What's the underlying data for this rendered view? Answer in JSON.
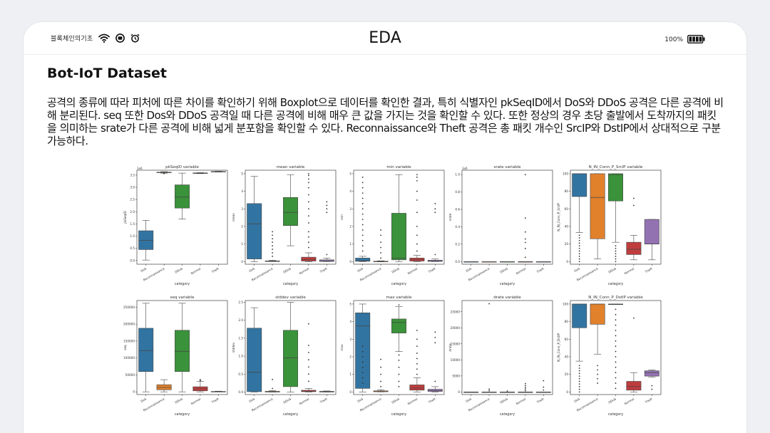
{
  "status_bar": {
    "brand": "블록체인의기초",
    "icons": [
      "wifi-icon",
      "record-icon",
      "alarm-icon"
    ],
    "title": "EDA",
    "battery_percent": "100%",
    "battery_level": 1.0
  },
  "heading": "Bot-IoT Dataset",
  "paragraph": "공격의 종류에 따라 피처에 따른 차이를 확인하기 위해 Boxplot으로 데이터를 확인한 결과, 특히 식별자인 pkSeqID에서 DoS와 DDoS 공격은 다른 공격에 비해 분리된다. seq 또한 Dos와 DDoS 공격일 때 다른 공격에 비해 매우 큰 값을 가지는 것을 확인할 수 있다. 또한 정상의 경우 초당 출발에서 도착까지의 패킷을 의미하는 srate가 다른 공격에 비해 넓게 분포함을 확인할 수 있다. Reconnaissance와 Theft 공격은 총 패킷 개수인 SrcIP와 DstIP에서 상대적으로 구분 가능하다.",
  "chart_data": {
    "type": "box",
    "categories": [
      "DoS",
      "Reconnaissance",
      "DDoS",
      "Normal",
      "Theft"
    ],
    "category_colors": [
      "#3274a1",
      "#e1812c",
      "#3a923a",
      "#c03d3e",
      "#9372b2"
    ],
    "xlabel": "category",
    "panels": [
      {
        "title": "pkSeqID variable",
        "ylabel": "pkSeqID",
        "offset_label": "1e6",
        "ylim": [
          -0.15,
          3.7
        ],
        "ticks": [
          0,
          0.5,
          1,
          1.5,
          2,
          2.5,
          3,
          3.5
        ],
        "tick_labels": [
          "0.0",
          "0.5",
          "1.0",
          "1.5",
          "2.0",
          "2.5",
          "3.0",
          "3.5"
        ],
        "boxes": [
          [
            0.02,
            0.45,
            0.83,
            1.22,
            1.65
          ],
          [
            3.58,
            3.6,
            3.61,
            3.62,
            3.64
          ],
          [
            1.7,
            2.15,
            2.6,
            3.1,
            3.58
          ],
          [
            3.56,
            3.57,
            3.58,
            3.59,
            3.6
          ],
          [
            3.63,
            3.64,
            3.64,
            3.65,
            3.66
          ]
        ],
        "outliers": [
          [],
          [
            3.56,
            3.57
          ],
          [],
          [],
          []
        ]
      },
      {
        "title": "mean variable",
        "ylabel": "mean",
        "ylim": [
          -0.15,
          5.2
        ],
        "ticks": [
          0,
          1,
          2,
          3,
          4,
          5
        ],
        "tick_labels": [
          "0",
          "1",
          "2",
          "3",
          "4",
          "5"
        ],
        "boxes": [
          [
            0,
            0.15,
            2.15,
            3.3,
            4.85
          ],
          [
            0,
            0.01,
            0.02,
            0.04,
            0.08
          ],
          [
            0.9,
            2.05,
            2.8,
            3.65,
            4.95
          ],
          [
            0,
            0.03,
            0.12,
            0.25,
            0.5
          ],
          [
            0,
            0.01,
            0.04,
            0.1,
            0.2
          ]
        ],
        "outliers": [
          [],
          [
            0.3,
            0.5,
            0.7,
            0.9,
            1.1,
            1.3,
            1.5,
            1.7
          ],
          [],
          [
            0.8,
            1.1,
            1.4,
            1.7,
            2.2,
            2.6,
            3.0,
            3.4,
            3.8,
            4.2,
            4.5,
            4.7,
            4.9,
            5.0
          ],
          [
            0.4,
            2.8,
            3.0,
            3.2,
            3.4
          ]
        ]
      },
      {
        "title": "min variable",
        "ylabel": "min",
        "ylim": [
          -0.15,
          5.2
        ],
        "ticks": [
          0,
          1,
          2,
          3,
          4,
          5
        ],
        "tick_labels": [
          "0",
          "1",
          "2",
          "3",
          "4",
          "5"
        ],
        "boxes": [
          [
            0,
            0.02,
            0.05,
            0.2,
            0.3
          ],
          [
            0,
            0,
            0.01,
            0.02,
            0.04
          ],
          [
            0,
            0.1,
            0.2,
            2.75,
            4.95
          ],
          [
            0,
            0.03,
            0.1,
            0.2,
            0.35
          ],
          [
            0,
            0.01,
            0.03,
            0.08,
            0.15
          ]
        ],
        "outliers": [
          [
            0.6,
            0.9,
            1.2,
            1.5,
            1.8,
            2.1,
            2.4,
            2.7,
            3.0,
            3.3,
            3.6,
            3.9,
            4.2,
            4.5,
            4.8
          ],
          [
            0.2,
            0.5,
            0.8,
            1.1,
            1.5,
            1.8
          ],
          [],
          [
            0.6,
            1.0,
            1.5,
            2.0,
            2.8,
            3.5,
            4.0,
            4.6,
            4.8,
            4.95
          ],
          [
            0.4,
            2.8,
            3.0,
            3.3
          ]
        ]
      },
      {
        "title": "srate variable",
        "ylabel": "srate",
        "offset_label": "1e6",
        "ylim": [
          -0.03,
          1.05
        ],
        "ticks": [
          0,
          0.2,
          0.4,
          0.6,
          0.8,
          1.0
        ],
        "tick_labels": [
          "0.0",
          "0.2",
          "0.4",
          "0.6",
          "0.8",
          "1.0"
        ],
        "boxes": [
          [
            0,
            0,
            0,
            0,
            0
          ],
          [
            0,
            0,
            0,
            0,
            0
          ],
          [
            0,
            0,
            0,
            0,
            0
          ],
          [
            0,
            0,
            0,
            0,
            0
          ],
          [
            0,
            0,
            0,
            0,
            0
          ]
        ],
        "outliers": [
          [],
          [],
          [],
          [
            0.05,
            0.15,
            0.22,
            0.26,
            0.34,
            0.5,
            1.0
          ],
          []
        ]
      },
      {
        "title": "N_IN_Conn_P_SrcIP variable",
        "ylabel": "N_IN_Conn_P_SrcIP",
        "ylim": [
          -3,
          104
        ],
        "ticks": [
          0,
          20,
          40,
          60,
          80,
          100
        ],
        "tick_labels": [
          "0",
          "20",
          "40",
          "60",
          "80",
          "100"
        ],
        "boxes": [
          [
            33,
            74,
            100,
            100,
            100
          ],
          [
            3,
            26,
            73,
            100,
            100
          ],
          [
            22,
            69,
            99,
            100,
            100
          ],
          [
            2,
            8,
            14,
            22,
            30
          ],
          [
            2,
            20,
            20,
            48,
            48
          ]
        ],
        "outliers": [
          [
            0,
            3,
            6,
            9,
            12,
            15,
            18,
            21,
            24,
            27,
            30
          ],
          [],
          [
            0,
            3,
            6,
            9,
            12,
            15,
            18
          ],
          [
            64,
            72
          ],
          []
        ]
      },
      {
        "title": "seq variable",
        "ylabel": "seq",
        "ylim": [
          -8000,
          270000
        ],
        "ticks": [
          0,
          50000,
          100000,
          150000,
          200000,
          250000
        ],
        "tick_labels": [
          "0",
          "50000",
          "100000",
          "150000",
          "200000",
          "250000"
        ],
        "boxes": [
          [
            0,
            60000,
            122000,
            188000,
            262000
          ],
          [
            0,
            6000,
            13000,
            21000,
            36000
          ],
          [
            0,
            60000,
            120000,
            182000,
            262000
          ],
          [
            0,
            3000,
            9000,
            15000,
            31000
          ],
          [
            0,
            200,
            600,
            1200,
            2000
          ]
        ],
        "outliers": [
          [],
          [],
          [],
          [
            33000,
            36000
          ],
          []
        ]
      },
      {
        "title": "stddev variable",
        "ylabel": "stddev",
        "ylim": [
          -0.07,
          2.55
        ],
        "ticks": [
          0,
          0.5,
          1.0,
          1.5,
          2.0,
          2.5
        ],
        "tick_labels": [
          "0.0",
          "0.5",
          "1.0",
          "1.5",
          "2.0",
          "2.5"
        ],
        "boxes": [
          [
            0,
            0.01,
            0.55,
            1.78,
            2.35
          ],
          [
            0,
            0,
            0.01,
            0.02,
            0.04
          ],
          [
            0,
            0.15,
            0.95,
            1.72,
            2.5
          ],
          [
            0,
            0.01,
            0.02,
            0.05,
            0.1
          ],
          [
            0,
            0,
            0.01,
            0.02,
            0.03
          ]
        ],
        "outliers": [
          [],
          [
            0.1,
            0.35
          ],
          [],
          [
            0.3,
            0.5,
            0.7,
            0.9,
            1.1,
            1.3,
            1.9
          ],
          []
        ]
      },
      {
        "title": "max variable",
        "ylabel": "max",
        "ylim": [
          -0.15,
          5.2
        ],
        "ticks": [
          0,
          1,
          2,
          3,
          4,
          5
        ],
        "tick_labels": [
          "0",
          "1",
          "2",
          "3",
          "4",
          "5"
        ],
        "boxes": [
          [
            0,
            0.2,
            3.75,
            4.5,
            5.0
          ],
          [
            0,
            0.01,
            0.03,
            0.06,
            0.12
          ],
          [
            2.3,
            3.35,
            3.95,
            4.15,
            4.85
          ],
          [
            0,
            0.1,
            0.22,
            0.4,
            0.8
          ],
          [
            0,
            0.03,
            0.08,
            0.15,
            0.3
          ]
        ],
        "outliers": [
          [
            0.5,
            0.8,
            1.1,
            1.4,
            1.7,
            2.0,
            2.3,
            2.6
          ],
          [
            0.3,
            0.6,
            1.0,
            1.4,
            1.85
          ],
          [
            0.3,
            0.6,
            1.0,
            1.4,
            1.8,
            2.1,
            4.95
          ],
          [
            1.0,
            1.3,
            1.6,
            1.9,
            2.2,
            2.6,
            3.0,
            3.5
          ],
          [
            0.6,
            2.8,
            3.1,
            3.4
          ]
        ]
      },
      {
        "title": "drate variable",
        "ylabel": "drate",
        "ylim": [
          -800,
          28500
        ],
        "ticks": [
          0,
          5000,
          10000,
          15000,
          20000,
          25000
        ],
        "tick_labels": [
          "0",
          "5000",
          "10000",
          "15000",
          "20000",
          "25000"
        ],
        "boxes": [
          [
            0,
            0,
            0,
            0,
            0
          ],
          [
            0,
            0,
            0,
            0,
            0
          ],
          [
            0,
            0,
            0,
            0,
            0
          ],
          [
            0,
            0,
            0,
            0,
            0
          ],
          [
            0,
            0,
            0,
            0,
            0
          ]
        ],
        "outliers": [
          [],
          [
            400,
            900,
            27500
          ],
          [
            300
          ],
          [
            400,
            900,
            1400,
            2000,
            2600
          ],
          [
            600,
            1500,
            3500
          ]
        ]
      },
      {
        "title": "N_IN_Conn_P_DstIP variable",
        "ylabel": "N_IN_Conn_P_DstIP",
        "ylim": [
          -3,
          104
        ],
        "ticks": [
          0,
          20,
          40,
          60,
          80,
          100
        ],
        "tick_labels": [
          "0",
          "20",
          "40",
          "60",
          "80",
          "100"
        ],
        "boxes": [
          [
            35,
            73,
            100,
            100,
            100
          ],
          [
            43,
            77,
            100,
            100,
            100
          ],
          [
            100,
            100,
            100,
            100,
            100
          ],
          [
            0,
            2,
            6,
            12,
            22
          ],
          [
            17,
            18,
            22,
            24,
            25
          ]
        ],
        "outliers": [
          [
            0,
            3,
            6,
            9,
            12,
            15,
            18,
            21,
            24,
            27,
            30
          ],
          [
            10,
            15,
            20,
            25,
            30
          ],
          [
            4,
            10,
            16,
            22,
            28,
            34,
            40,
            46,
            52,
            58,
            64,
            70,
            76,
            82,
            88,
            94
          ],
          [
            84
          ],
          [
            3,
            7
          ]
        ]
      }
    ]
  }
}
